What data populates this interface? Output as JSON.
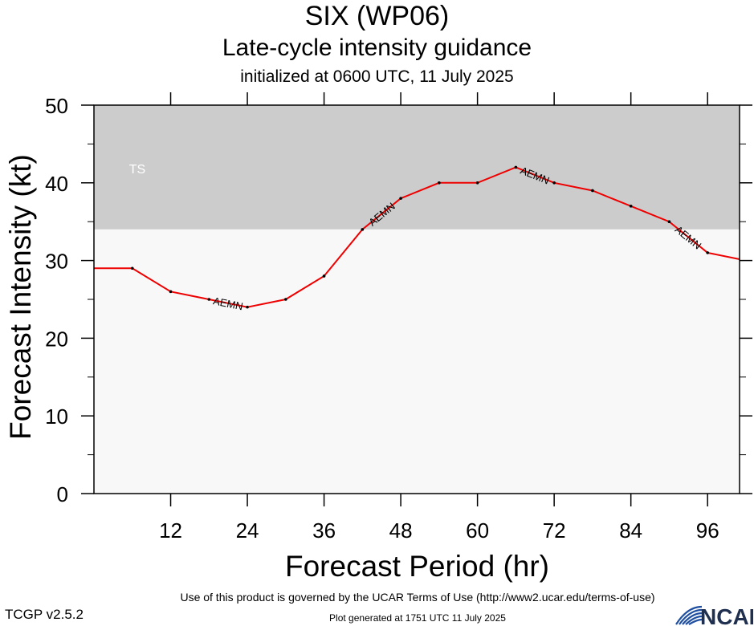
{
  "header": {
    "title": "SIX (WP06)",
    "subtitle": "Late-cycle intensity guidance",
    "init": "initialized at 0600 UTC, 11 July 2025"
  },
  "footer": {
    "terms": "Use of this product is governed by the UCAR Terms of Use (http://www2.ucar.edu/terms-of-use)",
    "version": "TCGP v2.5.2",
    "generated": "Plot generated at 1751 UTC   11 July 2025",
    "logo_text": "NCAR"
  },
  "chart_data": {
    "type": "line",
    "title": "SIX (WP06)",
    "subtitle": "Late-cycle intensity guidance",
    "xlabel": "Forecast Period (hr)",
    "ylabel": "Forecast Intensity (kt)",
    "xlim": [
      0,
      101
    ],
    "ylim": [
      0,
      50
    ],
    "xticks": [
      12,
      24,
      36,
      48,
      60,
      72,
      84,
      96
    ],
    "yticks": [
      0,
      10,
      20,
      30,
      40,
      50
    ],
    "grid": false,
    "bands": [
      {
        "label": "TS",
        "from": 34,
        "to": 50,
        "color": "#cccccc"
      },
      {
        "label": "",
        "from": 0,
        "to": 34,
        "color": "#f8f8f8"
      }
    ],
    "series": [
      {
        "name": "AEMN",
        "color": "#ee0000",
        "x": [
          0,
          6,
          12,
          18,
          24,
          30,
          36,
          42,
          48,
          54,
          60,
          66,
          72,
          78,
          84,
          90,
          96,
          102
        ],
        "y": [
          29,
          29,
          26,
          25,
          24,
          25,
          28,
          34,
          38,
          40,
          40,
          42,
          40,
          39,
          37,
          35,
          31,
          30
        ]
      }
    ]
  }
}
